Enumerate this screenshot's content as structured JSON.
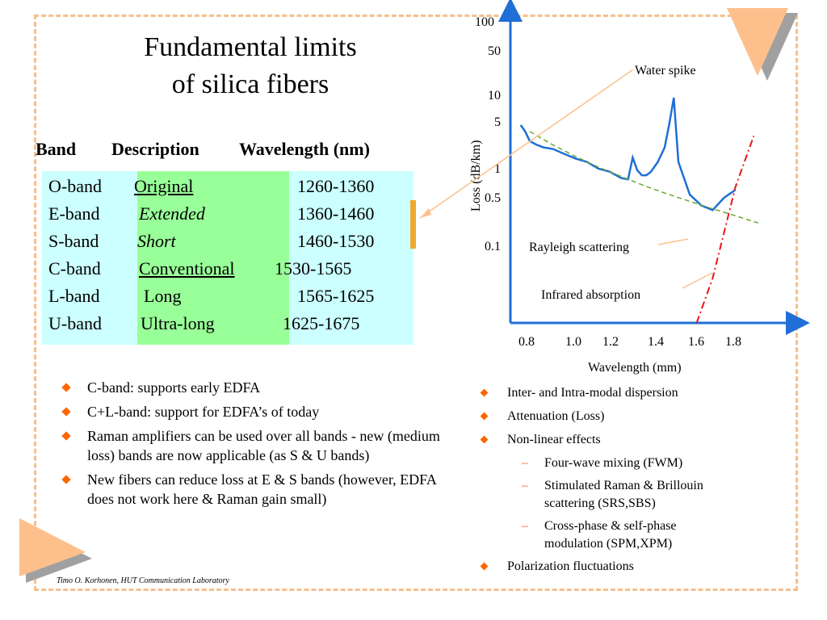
{
  "title": {
    "line1": "Fundamental limits",
    "line2": "of silica fibers"
  },
  "table": {
    "headers": [
      "Band",
      "Description",
      "Wavelength (nm)"
    ],
    "rows": [
      {
        "band": "O-band",
        "description": "Original",
        "wavelength": "1260-1360",
        "style": "underline"
      },
      {
        "band": "E-band",
        "description": "Extended",
        "wavelength": "1360-1460",
        "style": "italic"
      },
      {
        "band": "S-band",
        "description": "Short",
        "wavelength": "1460-1530",
        "style": "italic"
      },
      {
        "band": "C-band",
        "description": "Conventional",
        "wavelength": "1530-1565",
        "style": "underline"
      },
      {
        "band": "L-band",
        "description": "Long",
        "wavelength": "1565-1625",
        "style": "normal"
      },
      {
        "band": "U-band",
        "description": "Ultra-long",
        "wavelength": "1625-1675",
        "style": "normal"
      }
    ]
  },
  "left_bullets": [
    "C-band: supports early EDFA",
    "C+L-band: support for EDFA’s of today",
    "Raman amplifiers can be used over all bands - new (medium loss) bands are now applicable (as S & U bands)",
    "New fibers can reduce loss at E & S bands (however, EDFA does not work here & Raman gain small)"
  ],
  "right_bullets": {
    "item1": "Inter- and Intra-modal dispersion",
    "item2": "Attenuation (Loss)",
    "item3": "Non-linear effects",
    "sub1": "Four-wave mixing (FWM)",
    "sub2": "Stimulated Raman & Brillouin scattering (SRS,SBS)",
    "sub3": "Cross-phase & self-phase modulation (SPM,XPM)",
    "item4": "Polarization fluctuations"
  },
  "footer": "Timo O. Korhonen, HUT Communication Laboratory",
  "chart_data": {
    "type": "line",
    "xlabel": "Wavelength (mm)",
    "ylabel": "Loss (dB/km)",
    "x_ticks": [
      "0.8",
      "1.0",
      "1.2",
      "1.4",
      "1.6",
      "1.8"
    ],
    "y_ticks": [
      "100",
      "50",
      "10",
      "5",
      "1",
      "0.5",
      "0.1"
    ],
    "y_scale": "log",
    "annotations": [
      "Water spike",
      "Rayleigh scattering",
      "Infrared absorption"
    ],
    "series": [
      {
        "name": "",
        "color": "#1f6fd6",
        "x": [
          0.76,
          0.78,
          0.8,
          0.83,
          0.86,
          0.9,
          0.95,
          1.0,
          1.05,
          1.1,
          1.15,
          1.2,
          1.23,
          1.25,
          1.27,
          1.29,
          1.31,
          1.33,
          1.36,
          1.39,
          1.41,
          1.43,
          1.45,
          1.5,
          1.55,
          1.6,
          1.65,
          1.7
        ],
        "y": [
          4.4,
          3.5,
          2.5,
          2.2,
          2.0,
          1.9,
          1.6,
          1.35,
          1.2,
          0.95,
          0.85,
          0.68,
          0.65,
          1.4,
          0.9,
          0.75,
          0.75,
          0.85,
          1.2,
          2.0,
          4.5,
          11.5,
          1.2,
          0.38,
          0.26,
          0.22,
          0.34,
          0.45
        ]
      },
      {
        "name": "",
        "color": "#6aa832",
        "x": [
          0.8,
          0.9,
          1.0,
          1.1,
          1.2,
          1.3,
          1.4,
          1.5,
          1.6,
          1.7,
          1.8
        ],
        "y": [
          3.5,
          2.2,
          1.45,
          1.0,
          0.72,
          0.52,
          0.39,
          0.3,
          0.23,
          0.18,
          0.14
        ]
      },
      {
        "name": "",
        "color": "#e8141a",
        "x": [
          1.53,
          1.6,
          1.7,
          1.78
        ],
        "y": [
          0.002,
          0.02,
          0.5,
          3.0
        ]
      }
    ]
  }
}
